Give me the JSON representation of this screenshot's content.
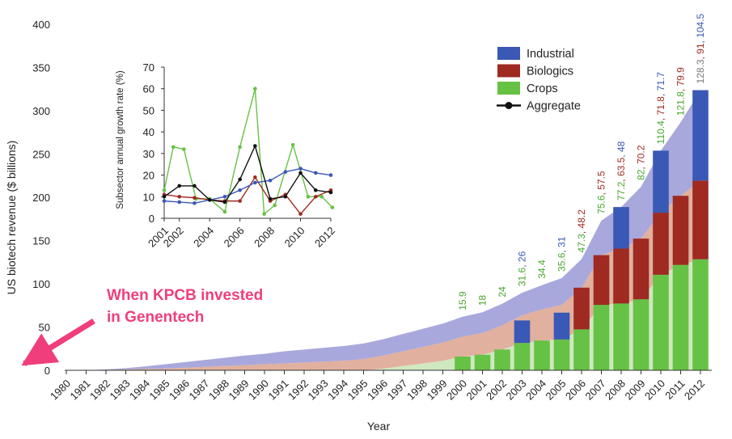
{
  "chart_data": [
    {
      "type": "bar",
      "stacked": true,
      "title": "",
      "xlabel": "Year",
      "ylabel": "US biotech revenue ($ billions)",
      "ylim": [
        0,
        400
      ],
      "yticks": [
        "0",
        "50",
        "100",
        "150",
        "200",
        "250",
        "300",
        "350",
        "400"
      ],
      "categories": [
        "1980",
        "1981",
        "1982",
        "1983",
        "1984",
        "1985",
        "1986",
        "1987",
        "1988",
        "1989",
        "1990",
        "1991",
        "1992",
        "1993",
        "1994",
        "1995",
        "1996",
        "1997",
        "1998",
        "1999",
        "2000",
        "2001",
        "2002",
        "2003",
        "2004",
        "2005",
        "2006",
        "2007",
        "2008",
        "2009",
        "2010",
        "2011",
        "2012"
      ],
      "series": [
        {
          "name": "Crops",
          "color": "#66c244",
          "values": [
            null,
            null,
            null,
            null,
            null,
            null,
            null,
            null,
            null,
            null,
            null,
            null,
            null,
            null,
            null,
            null,
            null,
            null,
            null,
            null,
            15.9,
            18,
            24,
            31.6,
            34.4,
            35.6,
            47.3,
            75.6,
            77.2,
            82,
            110.4,
            121.8,
            128.3
          ]
        },
        {
          "name": "Biologics",
          "color": "#9e2a22",
          "values": [
            null,
            null,
            null,
            null,
            null,
            null,
            null,
            null,
            null,
            null,
            null,
            null,
            null,
            null,
            null,
            null,
            null,
            null,
            null,
            null,
            null,
            null,
            null,
            null,
            null,
            null,
            48.2,
            57.5,
            63.5,
            70.2,
            71.8,
            79.9,
            91
          ]
        },
        {
          "name": "Industrial",
          "color": "#3a58b5",
          "values": [
            null,
            null,
            null,
            null,
            null,
            null,
            null,
            null,
            null,
            null,
            null,
            null,
            null,
            null,
            null,
            null,
            null,
            null,
            null,
            null,
            null,
            null,
            null,
            26,
            null,
            31,
            null,
            null,
            48,
            null,
            71.7,
            null,
            104.5
          ]
        }
      ],
      "area_series": [
        {
          "name": "Crops",
          "color": "#cfe8c0",
          "values": [
            0,
            0,
            0,
            0,
            0,
            0,
            0,
            0,
            0,
            0,
            0,
            0,
            0,
            0,
            0,
            0,
            2,
            5,
            8,
            11,
            15.9,
            18,
            24,
            31.6,
            34.4,
            35.6,
            47.3,
            75.6,
            77.2,
            82,
            110.4,
            121.8,
            128.3
          ]
        },
        {
          "name": "Biologics",
          "color": "#e1b09e",
          "values": [
            0,
            0,
            0.5,
            1,
            1.5,
            2,
            3,
            4,
            5,
            6,
            7,
            8,
            9,
            10,
            11,
            13,
            15,
            17,
            19,
            21,
            23,
            25,
            28,
            32,
            36,
            40,
            48.2,
            57.5,
            63.5,
            70.2,
            71.8,
            79.9,
            91
          ]
        },
        {
          "name": "Industrial",
          "color": "#a9a8dc",
          "values": [
            0,
            0,
            0.5,
            1.5,
            3,
            5,
            6.5,
            8,
            9.5,
            11,
            12,
            14,
            15,
            16,
            17,
            18,
            19,
            20,
            21,
            22,
            23,
            24,
            25,
            26,
            28,
            31,
            33,
            40,
            48,
            60,
            71.7,
            85,
            104.5
          ]
        }
      ],
      "data_labels": [
        {
          "year": "2000",
          "parts": [
            {
              "text": "15.9",
              "color": "#4aa62e"
            }
          ]
        },
        {
          "year": "2001",
          "parts": [
            {
              "text": "18",
              "color": "#4aa62e"
            }
          ]
        },
        {
          "year": "2002",
          "parts": [
            {
              "text": "24",
              "color": "#4aa62e"
            }
          ]
        },
        {
          "year": "2003",
          "parts": [
            {
              "text": "31.6",
              "color": "#4aa62e"
            },
            {
              "text": ", ",
              "color": "#3a58b5"
            },
            {
              "text": "26",
              "color": "#3a58b5"
            }
          ]
        },
        {
          "year": "2004",
          "parts": [
            {
              "text": "34.4",
              "color": "#4aa62e"
            }
          ]
        },
        {
          "year": "2005",
          "parts": [
            {
              "text": "35.6",
              "color": "#4aa62e"
            },
            {
              "text": ", ",
              "color": "#3a58b5"
            },
            {
              "text": "31",
              "color": "#3a58b5"
            }
          ]
        },
        {
          "year": "2006",
          "parts": [
            {
              "text": "47.3",
              "color": "#4aa62e"
            },
            {
              "text": ", ",
              "color": "#9e2a22"
            },
            {
              "text": "48.2",
              "color": "#9e2a22"
            }
          ]
        },
        {
          "year": "2007",
          "parts": [
            {
              "text": "75.6",
              "color": "#4aa62e"
            },
            {
              "text": ", ",
              "color": "#9e2a22"
            },
            {
              "text": "57.5",
              "color": "#9e2a22"
            }
          ]
        },
        {
          "year": "2008",
          "parts": [
            {
              "text": "77.2",
              "color": "#4aa62e"
            },
            {
              "text": ", ",
              "color": "#9e2a22"
            },
            {
              "text": "63.5",
              "color": "#9e2a22"
            },
            {
              "text": ", ",
              "color": "#3a58b5"
            },
            {
              "text": "48",
              "color": "#3a58b5"
            }
          ]
        },
        {
          "year": "2009",
          "parts": [
            {
              "text": "82",
              "color": "#4aa62e"
            },
            {
              "text": ", ",
              "color": "#9e2a22"
            },
            {
              "text": "70.2",
              "color": "#9e2a22"
            }
          ]
        },
        {
          "year": "2010",
          "parts": [
            {
              "text": "110.4",
              "color": "#4aa62e"
            },
            {
              "text": ", ",
              "color": "#9e2a22"
            },
            {
              "text": "71.8",
              "color": "#9e2a22"
            },
            {
              "text": ", ",
              "color": "#3a58b5"
            },
            {
              "text": "71.7",
              "color": "#3a58b5"
            }
          ]
        },
        {
          "year": "2011",
          "parts": [
            {
              "text": "121.8",
              "color": "#4aa62e"
            },
            {
              "text": ", ",
              "color": "#9e2a22"
            },
            {
              "text": "79.9",
              "color": "#9e2a22"
            }
          ]
        },
        {
          "year": "2012",
          "parts": [
            {
              "text": "128.3",
              "color": "#777777"
            },
            {
              "text": ", ",
              "color": "#9e2a22"
            },
            {
              "text": "91",
              "color": "#9e2a22"
            },
            {
              "text": ", ",
              "color": "#3a58b5"
            },
            {
              "text": "104.5",
              "color": "#3a58b5"
            }
          ]
        }
      ],
      "legend": {
        "position": "top-right",
        "entries": [
          {
            "label": "Industrial",
            "color": "#3a58b5",
            "kind": "box"
          },
          {
            "label": "Biologics",
            "color": "#9e2a22",
            "kind": "box"
          },
          {
            "label": "Crops",
            "color": "#66c244",
            "kind": "box"
          },
          {
            "label": "Aggregate",
            "color": "#111111",
            "kind": "line"
          }
        ]
      },
      "annotation": {
        "lines": [
          "When KPCB invested",
          "in Genentech"
        ],
        "color": "#ef3e7b",
        "points_to_year": "1980"
      }
    },
    {
      "type": "line",
      "title": "",
      "xlabel": "",
      "ylabel": "Subsector annual growth rate (%)",
      "ylim": [
        0,
        70
      ],
      "yticks": [
        "0",
        "10",
        "20",
        "30",
        "40",
        "50",
        "60",
        "70"
      ],
      "x_range": [
        2001,
        2012
      ],
      "xticks": [
        "2001",
        "2002",
        "2004",
        "2006",
        "2008",
        "2010",
        "2012"
      ],
      "series": [
        {
          "name": "Crops",
          "color": "#66c244",
          "x": [
            2001,
            2001.6,
            2002.3,
            2003.1,
            2004,
            2005,
            2006,
            2007,
            2007.6,
            2008.3,
            2009.5,
            2010.5,
            2011.4,
            2012.1
          ],
          "y": [
            13,
            33,
            32,
            9,
            9,
            3,
            33,
            60,
            2,
            6,
            34,
            10,
            10,
            5
          ]
        },
        {
          "name": "Biologics",
          "color": "#9e2a22",
          "x": [
            2001,
            2002,
            2003,
            2004,
            2005,
            2006,
            2007,
            2008,
            2009,
            2010,
            2011,
            2012
          ],
          "y": [
            11,
            10,
            9.5,
            8.5,
            8,
            8,
            19,
            8,
            11,
            2,
            10,
            13
          ]
        },
        {
          "name": "Industrial",
          "color": "#3a58b5",
          "x": [
            2001,
            2002,
            2003,
            2004,
            2005,
            2006,
            2007,
            2008,
            2009,
            2010,
            2011,
            2012
          ],
          "y": [
            8,
            7.5,
            7,
            8.5,
            10,
            13,
            16.5,
            17.5,
            21.5,
            23,
            21,
            20
          ]
        },
        {
          "name": "Aggregate",
          "color": "#111111",
          "x": [
            2001,
            2002,
            2003,
            2004,
            2005,
            2006,
            2007,
            2008,
            2009,
            2010,
            2011,
            2012
          ],
          "y": [
            10,
            15,
            15,
            8.5,
            7.5,
            18,
            33.5,
            9,
            10,
            21,
            13,
            12
          ]
        }
      ]
    }
  ]
}
